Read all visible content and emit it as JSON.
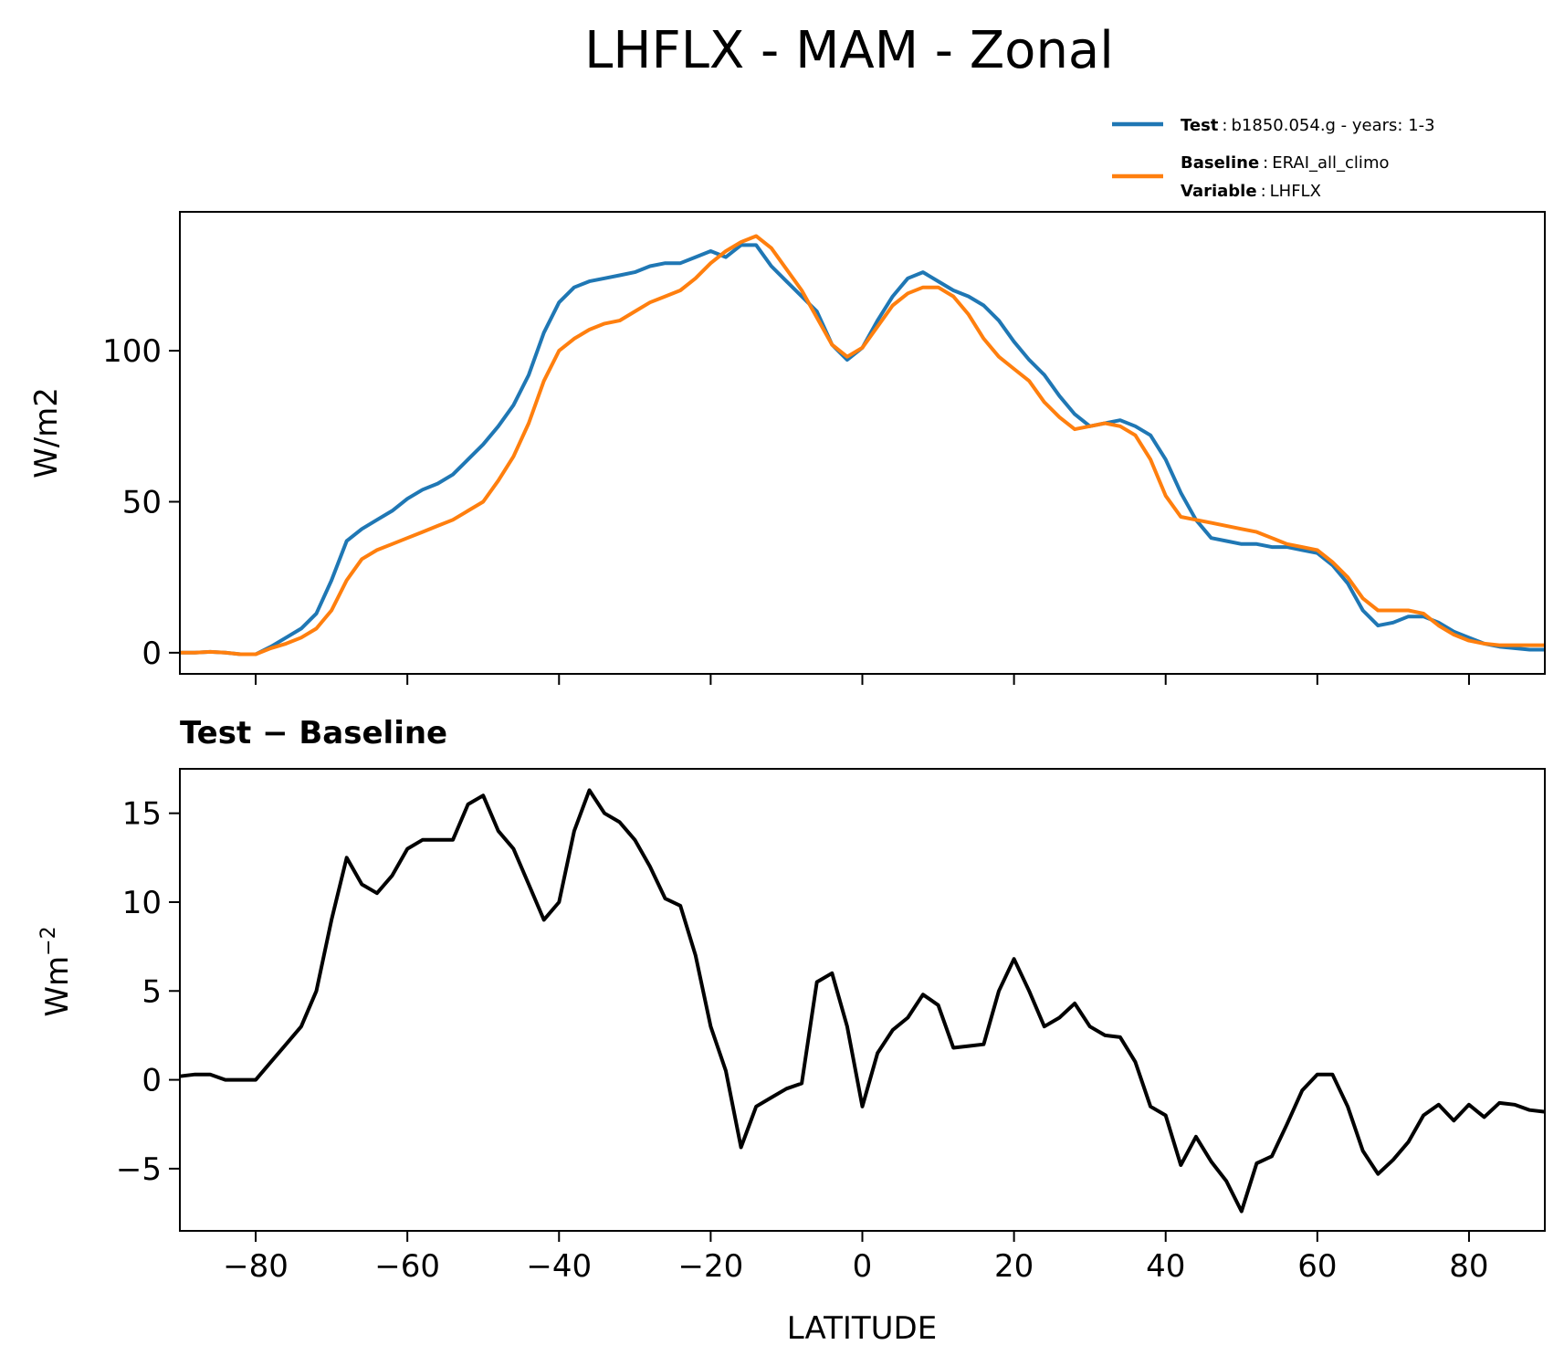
{
  "figure_title": "LHFLX - MAM - Zonal",
  "legend": {
    "test_label": "Test",
    "test_text": "b1850.054.g - years: 1-3",
    "baseline_label": "Baseline",
    "baseline_text": "ERAI_all_climo",
    "variable_label": "Variable",
    "variable_text": "LHFLX",
    "separator": ":"
  },
  "colors": {
    "test": "#1f77b4",
    "baseline": "#ff7f0e",
    "diff": "#000000"
  },
  "chart_data": [
    {
      "type": "line",
      "title": "",
      "xlabel": "",
      "ylabel": "W/m2",
      "xlim": [
        -90,
        90
      ],
      "ylim": [
        -7,
        146
      ],
      "yticks": [
        0,
        50,
        100
      ],
      "ytick_labels": [
        "0",
        "50",
        "100"
      ],
      "x": [
        -90,
        -88,
        -86,
        -84,
        -82,
        -80,
        -78,
        -76,
        -74,
        -72,
        -70,
        -68,
        -66,
        -64,
        -62,
        -60,
        -58,
        -56,
        -54,
        -52,
        -50,
        -48,
        -46,
        -44,
        -42,
        -40,
        -38,
        -36,
        -34,
        -32,
        -30,
        -28,
        -26,
        -24,
        -22,
        -20,
        -18,
        -16,
        -14,
        -12,
        -10,
        -8,
        -6,
        -4,
        -2,
        0,
        2,
        4,
        6,
        8,
        10,
        12,
        14,
        16,
        18,
        20,
        22,
        24,
        26,
        28,
        30,
        32,
        34,
        36,
        38,
        40,
        42,
        44,
        46,
        48,
        50,
        52,
        54,
        56,
        58,
        60,
        62,
        64,
        66,
        68,
        70,
        72,
        74,
        76,
        78,
        80,
        82,
        84,
        86,
        88,
        90
      ],
      "series": [
        {
          "name": "Test",
          "values": [
            0,
            0,
            0.3,
            0,
            -0.5,
            -0.5,
            2,
            5,
            8,
            13,
            24,
            37,
            41,
            44,
            47,
            51,
            54,
            56,
            59,
            64,
            69,
            75,
            82,
            92,
            106,
            116,
            121,
            123,
            124,
            125,
            126,
            128,
            129,
            129,
            131,
            133,
            131,
            135,
            135,
            128,
            123,
            118,
            113,
            102,
            97,
            101,
            110,
            118,
            124,
            126,
            123,
            120,
            118,
            115,
            110,
            103,
            97,
            92,
            85,
            79,
            75,
            76,
            77,
            75,
            72,
            64,
            53,
            44,
            38,
            37,
            36,
            36,
            35,
            35,
            34,
            33,
            29,
            23,
            14,
            9,
            10,
            12,
            12,
            10,
            7,
            5,
            3,
            2,
            1.5,
            1,
            1
          ],
          "color_key": "test"
        },
        {
          "name": "Baseline",
          "values": [
            0,
            0,
            0.3,
            0,
            -0.5,
            -0.5,
            1.5,
            3,
            5,
            8,
            14,
            24,
            31,
            34,
            36,
            38,
            40,
            42,
            44,
            47,
            50,
            57,
            65,
            76,
            90,
            100,
            104,
            107,
            109,
            110,
            113,
            116,
            118,
            120,
            124,
            129,
            133,
            136,
            138,
            134,
            127,
            120,
            111,
            102,
            98,
            101,
            108,
            115,
            119,
            121,
            121,
            118,
            112,
            104,
            98,
            94,
            90,
            83,
            78,
            74,
            75,
            76,
            75,
            72,
            64,
            52,
            45,
            44,
            43,
            42,
            41,
            40,
            38,
            36,
            35,
            34,
            30,
            25,
            18,
            14,
            14,
            14,
            13,
            9,
            6,
            4,
            3,
            2.5,
            2.5,
            2.5,
            2.5
          ],
          "color_key": "baseline"
        }
      ]
    },
    {
      "type": "line",
      "title": "Test − Baseline",
      "xlabel": "LATITUDE",
      "ylabel_base": "Wm",
      "ylabel_exp": "−2",
      "xlim": [
        -90,
        90
      ],
      "ylim": [
        -8.5,
        17.5
      ],
      "xticks": [
        -80,
        -60,
        -40,
        -20,
        0,
        20,
        40,
        60,
        80
      ],
      "xtick_labels": [
        "−80",
        "−60",
        "−40",
        "−20",
        "0",
        "20",
        "40",
        "60",
        "80"
      ],
      "yticks": [
        -5,
        0,
        5,
        10,
        15
      ],
      "ytick_labels": [
        "−5",
        "0",
        "5",
        "10",
        "15"
      ],
      "x": [
        -90,
        -88,
        -86,
        -84,
        -82,
        -80,
        -78,
        -76,
        -74,
        -72,
        -70,
        -68,
        -66,
        -64,
        -62,
        -60,
        -58,
        -56,
        -54,
        -52,
        -50,
        -48,
        -46,
        -44,
        -42,
        -40,
        -38,
        -36,
        -34,
        -32,
        -30,
        -28,
        -26,
        -24,
        -22,
        -20,
        -18,
        -16,
        -14,
        -12,
        -10,
        -8,
        -6,
        -4,
        -2,
        0,
        2,
        4,
        6,
        8,
        10,
        12,
        14,
        16,
        18,
        20,
        22,
        24,
        26,
        28,
        30,
        32,
        34,
        36,
        38,
        40,
        42,
        44,
        46,
        48,
        50,
        52,
        54,
        56,
        58,
        60,
        62,
        64,
        66,
        68,
        70,
        72,
        74,
        76,
        78,
        80,
        82,
        84,
        86,
        88,
        90
      ],
      "series": [
        {
          "name": "Test − Baseline",
          "values": [
            0.2,
            0.3,
            0.3,
            0,
            0,
            0,
            1,
            2,
            3,
            5,
            9,
            12.5,
            11,
            10.5,
            11.5,
            13,
            13.5,
            13.5,
            13.5,
            15.5,
            16,
            14,
            13,
            11,
            9,
            10,
            14,
            16.3,
            15,
            14.5,
            13.5,
            12,
            10.2,
            9.8,
            7,
            3,
            0.5,
            -3.8,
            -1.5,
            -1,
            -0.5,
            -0.2,
            5.5,
            6,
            3,
            -1.5,
            1.5,
            2.8,
            3.5,
            4.8,
            4.2,
            1.8,
            1.9,
            2,
            5,
            6.8,
            5,
            3,
            3.5,
            4.3,
            3,
            2.5,
            2.4,
            1,
            -1.5,
            -2,
            -4.8,
            -3.2,
            -4.6,
            -5.7,
            -7.4,
            -4.7,
            -4.3,
            -2.5,
            -0.6,
            0.3,
            0.3,
            -1.5,
            -4,
            -5.3,
            -4.5,
            -3.5,
            -2,
            -1.4,
            -2.3,
            -1.4,
            -2.1,
            -1.3,
            -1.4,
            -1.7,
            -1.8
          ],
          "color_key": "diff"
        }
      ]
    }
  ]
}
